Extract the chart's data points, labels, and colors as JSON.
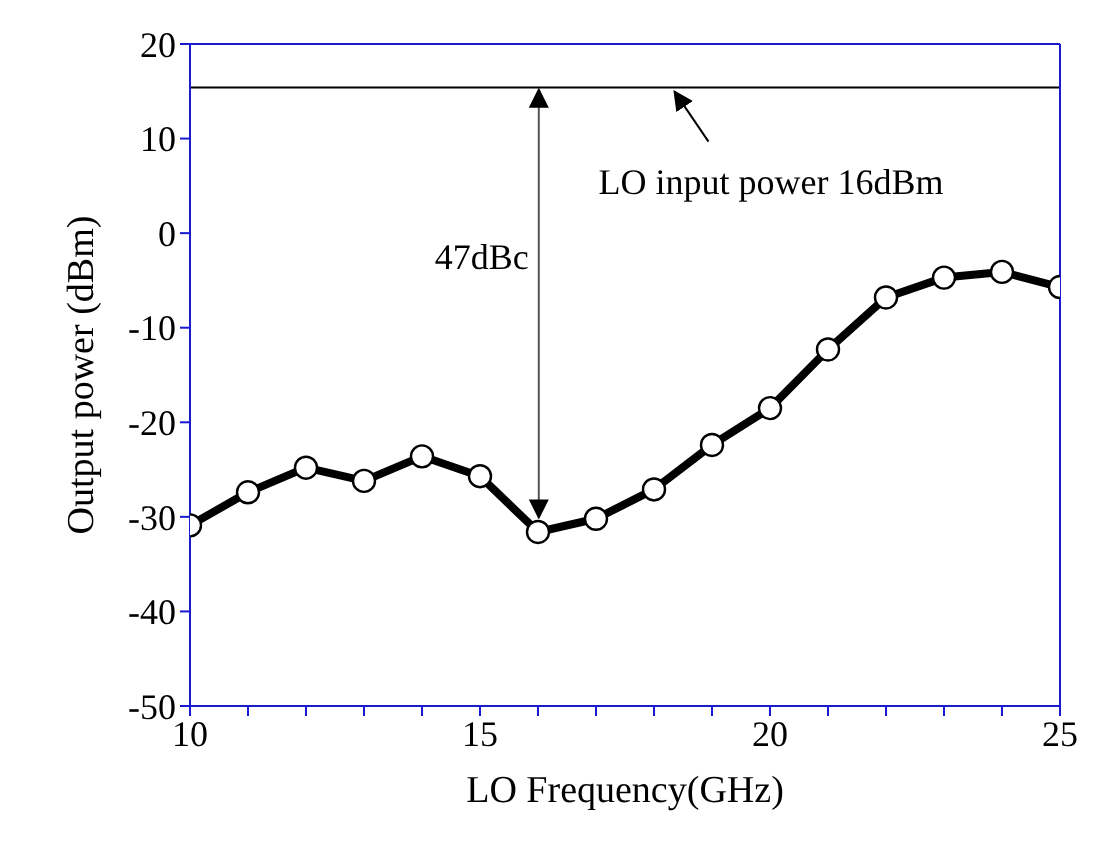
{
  "chart_data": {
    "type": "line",
    "xlabel": "LO Frequency(GHz)",
    "ylabel": "Output power (dBm)",
    "x": [
      10,
      11,
      12,
      13,
      14,
      15,
      16,
      17,
      18,
      19,
      20,
      21,
      22,
      23,
      24,
      25
    ],
    "series": [
      {
        "color": "#000000",
        "values": [
          -30.9,
          -27.4,
          -24.8,
          -26.2,
          -23.6,
          -25.7,
          -31.6,
          -30.2,
          -27.1,
          -22.4,
          -18.5,
          -12.3,
          -6.8,
          -4.7,
          -4.1,
          -5.7
        ]
      }
    ],
    "marker": "circle",
    "line_style": "solid",
    "xlim": [
      10,
      25
    ],
    "xticks": [
      10,
      {
        "value": 11,
        "label": null
      },
      {
        "value": 12,
        "label": null
      },
      {
        "value": 13,
        "label": null
      },
      {
        "value": 14,
        "label": null
      },
      15,
      {
        "value": 16,
        "label": null
      },
      {
        "value": 17,
        "label": null
      },
      {
        "value": 18,
        "label": null
      },
      {
        "value": 19,
        "label": null
      },
      20,
      {
        "value": 21,
        "label": null
      },
      {
        "value": 22,
        "label": null
      },
      {
        "value": 23,
        "label": null
      },
      {
        "value": 24,
        "label": null
      },
      25
    ],
    "ylim": [
      -50,
      20
    ],
    "yticks": [
      -50,
      -40,
      -30,
      -20,
      -10,
      0,
      10,
      20
    ],
    "ref_lines": [
      {
        "axis": "y",
        "value": 15.4,
        "color": "#000000"
      }
    ],
    "annotations": [
      {
        "text": "LO input power 16dBm",
        "x": 18.3,
        "y": 15.4
      },
      "47dBc"
    ]
  }
}
